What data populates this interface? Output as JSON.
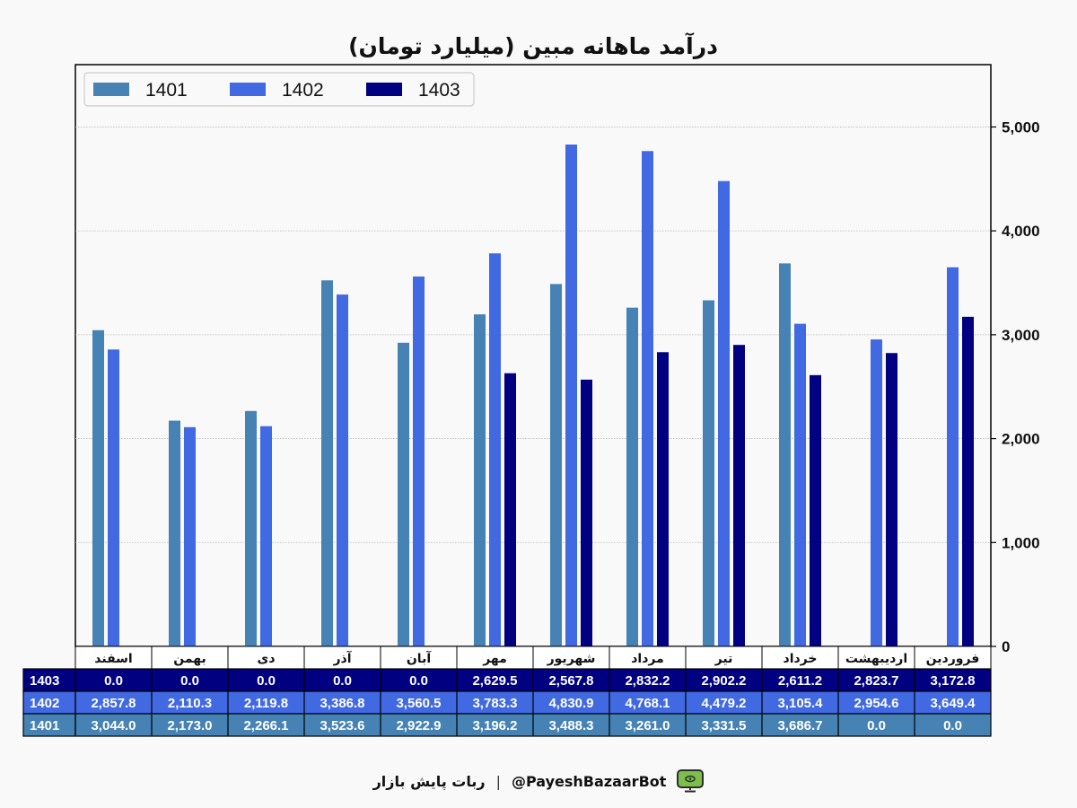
{
  "chart_data": {
    "type": "bar",
    "title": "درآمد ماهانه مبین (میلیارد تومان)",
    "categories": [
      "فروردین",
      "اردیبهشت",
      "خرداد",
      "تیر",
      "مرداد",
      "شهریور",
      "مهر",
      "آبان",
      "آذر",
      "دی",
      "بهمن",
      "اسفند"
    ],
    "series": [
      {
        "name": "1401",
        "color": "#4682b4",
        "values": [
          0.0,
          0.0,
          3686.7,
          3331.5,
          3261.0,
          3488.3,
          3196.2,
          2922.9,
          3523.6,
          2266.1,
          2173.0,
          3044.0
        ]
      },
      {
        "name": "1402",
        "color": "#4169e1",
        "values": [
          3649.4,
          2954.6,
          3105.4,
          4479.2,
          4768.1,
          4830.9,
          3783.3,
          3560.5,
          3386.8,
          2119.8,
          2110.3,
          2857.8
        ]
      },
      {
        "name": "1403",
        "color": "#000080",
        "values": [
          3172.8,
          2823.7,
          2611.2,
          2902.2,
          2832.2,
          2567.8,
          2629.5,
          0.0,
          0.0,
          0.0,
          0.0,
          0.0
        ]
      }
    ],
    "table_rows": [
      {
        "label": "1403",
        "series_index": 2,
        "cells": [
          "3,172.8",
          "2,823.7",
          "2,611.2",
          "2,902.2",
          "2,832.2",
          "2,567.8",
          "2,629.5",
          "0.0",
          "0.0",
          "0.0",
          "0.0",
          "0.0"
        ]
      },
      {
        "label": "1402",
        "series_index": 1,
        "cells": [
          "3,649.4",
          "2,954.6",
          "3,105.4",
          "4,479.2",
          "4,768.1",
          "4,830.9",
          "3,783.3",
          "3,560.5",
          "3,386.8",
          "2,119.8",
          "2,110.3",
          "2,857.8"
        ]
      },
      {
        "label": "1401",
        "series_index": 0,
        "cells": [
          "0.0",
          "0.0",
          "3,686.7",
          "3,331.5",
          "3,261.0",
          "3,488.3",
          "3,196.2",
          "2,922.9",
          "3,523.6",
          "2,266.1",
          "2,173.0",
          "3,044.0"
        ]
      }
    ],
    "ylim": [
      0,
      5600
    ],
    "yticks": [
      0,
      1000,
      2000,
      3000,
      4000,
      5000
    ],
    "ytick_labels": [
      "0",
      "1,000",
      "2,000",
      "3,000",
      "4,000",
      "5,000"
    ],
    "y_axis_side": "right",
    "grid": true,
    "legend_position": "top-left",
    "category_order": "right-to-left"
  },
  "footer": {
    "bot_name": "ربات پایش بازار",
    "separator": "|",
    "handle": "@PayeshBazaarBot",
    "icon": "bot-monitor-icon"
  }
}
